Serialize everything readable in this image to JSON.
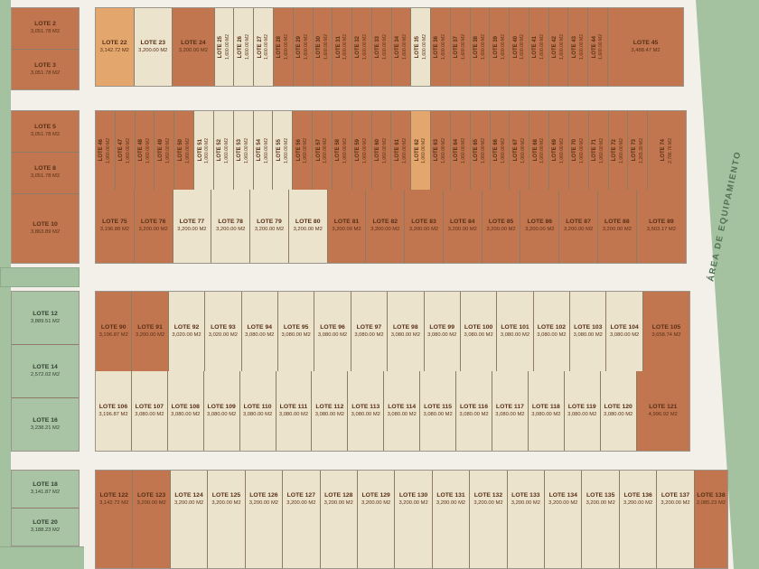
{
  "title": "Plano de lotificación",
  "colors": {
    "orange": "#c1764f",
    "cream": "#ece3cc",
    "tan": "#e3a76d",
    "green": "#a4c1a0",
    "road": "#f2f0e9",
    "lot_text": "#582f16",
    "green_label_text": "#4f7254"
  },
  "right_area": {
    "label": "ÁREA DE EQUIPAMIENTO"
  },
  "left_column": {
    "groups": [
      {
        "lots": [
          {
            "label": "LOTE 2",
            "area": "3,051.78 M2",
            "color": "orange"
          },
          {
            "label": "LOTE 3",
            "area": "3,051.78 M2",
            "color": "orange"
          }
        ]
      },
      {
        "lots": [
          {
            "label": "LOTE 5",
            "area": "3,051.78 M2",
            "color": "orange"
          },
          {
            "label": "LOTE 8",
            "area": "3,051.78 M2",
            "color": "orange"
          },
          {
            "label": "LOTE 10",
            "area": "3,863.89 M2",
            "color": "orange",
            "w": 1.7
          }
        ]
      },
      {
        "lots": [
          {
            "label": "LOTE 12",
            "area": "3,889.51 M2",
            "color": "green"
          },
          {
            "label": "LOTE 14",
            "area": "2,572.02 M2",
            "color": "green"
          },
          {
            "label": "LOTE 16",
            "area": "3,238.21 M2",
            "color": "green"
          }
        ]
      },
      {
        "lots": [
          {
            "label": "LOTE 18",
            "area": "3,141.87 M2",
            "color": "green"
          },
          {
            "label": "LOTE 20",
            "area": "3,188.23 M2",
            "color": "green"
          }
        ]
      }
    ]
  },
  "bands": [
    {
      "rows": [
        {
          "lots": [
            {
              "label": "LOTE 22",
              "area": "3,142.72 M2",
              "color": "tan",
              "w": 2
            },
            {
              "label": "LOTE 23",
              "area": "3,200.00 M2",
              "color": "cream",
              "w": 2
            },
            {
              "label": "LOTE 24",
              "area": "3,200.00 M2",
              "color": "orange",
              "w": 2.2
            },
            {
              "label": "LOTE 25",
              "area": "1,600.00 M2",
              "color": "cream",
              "v": true
            },
            {
              "label": "LOTE 26",
              "area": "1,600.00 M2",
              "color": "cream",
              "v": true
            },
            {
              "label": "LOTE 27",
              "area": "1,600.00 M2",
              "color": "cream",
              "v": true
            },
            {
              "label": "LOTE 28",
              "area": "1,600.00 M2",
              "color": "orange",
              "v": true
            },
            {
              "label": "LOTE 29",
              "area": "1,600.00 M2",
              "color": "orange",
              "v": true
            },
            {
              "label": "LOTE 30",
              "area": "1,600.00 M2",
              "color": "orange",
              "v": true
            },
            {
              "label": "LOTE 31",
              "area": "1,600.00 M2",
              "color": "orange",
              "v": true
            },
            {
              "label": "LOTE 32",
              "area": "1,600.00 M2",
              "color": "orange",
              "v": true
            },
            {
              "label": "LOTE 33",
              "area": "1,600.00 M2",
              "color": "orange",
              "v": true
            },
            {
              "label": "LOTE 34",
              "area": "1,600.00 M2",
              "color": "orange",
              "v": true
            },
            {
              "label": "LOTE 35",
              "area": "1,600.00 M2",
              "color": "cream",
              "v": true
            },
            {
              "label": "LOTE 36",
              "area": "1,600.00 M2",
              "color": "orange",
              "v": true
            },
            {
              "label": "LOTE 37",
              "area": "1,600.00 M2",
              "color": "orange",
              "v": true
            },
            {
              "label": "LOTE 38",
              "area": "1,600.00 M2",
              "color": "orange",
              "v": true
            },
            {
              "label": "LOTE 39",
              "area": "1,600.00 M2",
              "color": "orange",
              "v": true
            },
            {
              "label": "LOTE 40",
              "area": "1,600.00 M2",
              "color": "orange",
              "v": true
            },
            {
              "label": "LOTE 41",
              "area": "1,600.00 M2",
              "color": "orange",
              "v": true
            },
            {
              "label": "LOTE 42",
              "area": "1,600.00 M2",
              "color": "orange",
              "v": true
            },
            {
              "label": "LOTE 43",
              "area": "1,600.00 M2",
              "color": "orange",
              "v": true
            },
            {
              "label": "LOTE 44",
              "area": "1,600.00 M2",
              "color": "orange",
              "v": true
            },
            {
              "label": "LOTE 45",
              "area": "3,488.47 M2",
              "color": "orange",
              "w": 4
            }
          ]
        }
      ]
    },
    {
      "rows": [
        {
          "lots": [
            {
              "label": "LOTE 46",
              "area": "1,060.00 M2",
              "color": "orange",
              "v": true
            },
            {
              "label": "LOTE 47",
              "area": "1,060.00 M2",
              "color": "orange",
              "v": true
            },
            {
              "label": "LOTE 48",
              "area": "1,060.00 M2",
              "color": "orange",
              "v": true
            },
            {
              "label": "LOTE 49",
              "area": "1,060.00 M2",
              "color": "orange",
              "v": true
            },
            {
              "label": "LOTE 50",
              "area": "1,060.00 M2",
              "color": "orange",
              "v": true
            },
            {
              "label": "LOTE 51",
              "area": "1,060.00 M2",
              "color": "cream",
              "v": true
            },
            {
              "label": "LOTE 52",
              "area": "1,060.00 M2",
              "color": "cream",
              "v": true
            },
            {
              "label": "LOTE 53",
              "area": "1,060.00 M2",
              "color": "cream",
              "v": true
            },
            {
              "label": "LOTE 54",
              "area": "1,060.00 M2",
              "color": "cream",
              "v": true
            },
            {
              "label": "LOTE 55",
              "area": "1,060.00 M2",
              "color": "cream",
              "v": true
            },
            {
              "label": "LOTE 56",
              "area": "1,060.00 M2",
              "color": "orange",
              "v": true
            },
            {
              "label": "LOTE 57",
              "area": "1,060.00 M2",
              "color": "orange",
              "v": true
            },
            {
              "label": "LOTE 58",
              "area": "1,060.00 M2",
              "color": "orange",
              "v": true
            },
            {
              "label": "LOTE 59",
              "area": "1,060.00 M2",
              "color": "orange",
              "v": true
            },
            {
              "label": "LOTE 60",
              "area": "1,060.00 M2",
              "color": "orange",
              "v": true
            },
            {
              "label": "LOTE 61",
              "area": "1,060.00 M2",
              "color": "orange",
              "v": true
            },
            {
              "label": "LOTE 62",
              "area": "1,060.00 M2",
              "color": "tan",
              "v": true
            },
            {
              "label": "LOTE 63",
              "area": "1,060.00 M2",
              "color": "orange",
              "v": true
            },
            {
              "label": "LOTE 64",
              "area": "1,060.00 M2",
              "color": "orange",
              "v": true
            },
            {
              "label": "LOTE 65",
              "area": "1,060.00 M2",
              "color": "orange",
              "v": true
            },
            {
              "label": "LOTE 66",
              "area": "1,060.00 M2",
              "color": "orange",
              "v": true
            },
            {
              "label": "LOTE 67",
              "area": "1,060.00 M2",
              "color": "orange",
              "v": true
            },
            {
              "label": "LOTE 68",
              "area": "1,060.00 M2",
              "color": "orange",
              "v": true
            },
            {
              "label": "LOTE 69",
              "area": "1,060.00 M2",
              "color": "orange",
              "v": true
            },
            {
              "label": "LOTE 70",
              "area": "1,060.00 M2",
              "color": "orange",
              "v": true
            },
            {
              "label": "LOTE 71",
              "area": "1,060.00 M2",
              "color": "orange",
              "v": true
            },
            {
              "label": "LOTE 72",
              "area": "1,060.00 M2",
              "color": "orange",
              "v": true
            },
            {
              "label": "LOTE 73",
              "area": "1,265.30 M2",
              "color": "orange",
              "v": true
            },
            {
              "label": "LOTE 74",
              "area": "2,786.76 M2",
              "color": "orange",
              "v": true,
              "w": 2
            }
          ]
        },
        {
          "lots": [
            {
              "label": "LOTE 75",
              "area": "3,196.88 M2",
              "color": "orange"
            },
            {
              "label": "LOTE 76",
              "area": "3,200.00 M2",
              "color": "orange"
            },
            {
              "label": "LOTE 77",
              "area": "3,200.00 M2",
              "color": "cream"
            },
            {
              "label": "LOTE 78",
              "area": "3,200.00 M2",
              "color": "cream"
            },
            {
              "label": "LOTE 79",
              "area": "3,200.00 M2",
              "color": "cream"
            },
            {
              "label": "LOTE 80",
              "area": "3,200.00 M2",
              "color": "cream"
            },
            {
              "label": "LOTE 81",
              "area": "3,200.00 M2",
              "color": "orange"
            },
            {
              "label": "LOTE 82",
              "area": "3,200.00 M2",
              "color": "orange"
            },
            {
              "label": "LOTE 83",
              "area": "3,200.00 M2",
              "color": "orange"
            },
            {
              "label": "LOTE 84",
              "area": "3,200.00 M2",
              "color": "orange"
            },
            {
              "label": "LOTE 85",
              "area": "3,200.00 M2",
              "color": "orange"
            },
            {
              "label": "LOTE 86",
              "area": "3,200.00 M2",
              "color": "orange"
            },
            {
              "label": "LOTE 87",
              "area": "3,200.00 M2",
              "color": "orange"
            },
            {
              "label": "LOTE 88",
              "area": "3,200.00 M2",
              "color": "orange"
            },
            {
              "label": "LOTE 89",
              "area": "3,503.17 M2",
              "color": "orange",
              "w": 1.3
            }
          ]
        }
      ]
    },
    {
      "rows": [
        {
          "lots": [
            {
              "label": "LOTE 90",
              "area": "3,196.87 M2",
              "color": "orange"
            },
            {
              "label": "LOTE 91",
              "area": "3,200.00 M2",
              "color": "orange"
            },
            {
              "label": "LOTE 92",
              "area": "3,020.00 M2",
              "color": "cream"
            },
            {
              "label": "LOTE 93",
              "area": "3,020.00 M2",
              "color": "cream"
            },
            {
              "label": "LOTE 94",
              "area": "3,080.00 M2",
              "color": "cream"
            },
            {
              "label": "LOTE 95",
              "area": "3,080.00 M2",
              "color": "cream"
            },
            {
              "label": "LOTE 96",
              "area": "3,080.00 M2",
              "color": "cream"
            },
            {
              "label": "LOTE 97",
              "area": "3,080.00 M2",
              "color": "cream"
            },
            {
              "label": "LOTE 98",
              "area": "3,080.00 M2",
              "color": "cream"
            },
            {
              "label": "LOTE 99",
              "area": "3,080.00 M2",
              "color": "cream"
            },
            {
              "label": "LOTE 100",
              "area": "3,080.00 M2",
              "color": "cream"
            },
            {
              "label": "LOTE 101",
              "area": "3,080.00 M2",
              "color": "cream"
            },
            {
              "label": "LOTE 102",
              "area": "3,080.00 M2",
              "color": "cream"
            },
            {
              "label": "LOTE 103",
              "area": "3,080.00 M2",
              "color": "cream"
            },
            {
              "label": "LOTE 104",
              "area": "3,080.00 M2",
              "color": "cream"
            },
            {
              "label": "LOTE 105",
              "area": "3,658.74 M2",
              "color": "orange",
              "w": 1.3
            }
          ]
        },
        {
          "lots": [
            {
              "label": "LOTE 106",
              "area": "3,196.87 M2",
              "color": "cream"
            },
            {
              "label": "LOTE 107",
              "area": "3,080.00 M2",
              "color": "cream"
            },
            {
              "label": "LOTE 108",
              "area": "3,080.00 M2",
              "color": "cream"
            },
            {
              "label": "LOTE 109",
              "area": "3,080.00 M2",
              "color": "cream"
            },
            {
              "label": "LOTE 110",
              "area": "3,080.00 M2",
              "color": "cream"
            },
            {
              "label": "LOTE 111",
              "area": "3,080.00 M2",
              "color": "cream"
            },
            {
              "label": "LOTE 112",
              "area": "3,080.00 M2",
              "color": "cream"
            },
            {
              "label": "LOTE 113",
              "area": "3,080.00 M2",
              "color": "cream"
            },
            {
              "label": "LOTE 114",
              "area": "3,080.00 M2",
              "color": "cream"
            },
            {
              "label": "LOTE 115",
              "area": "3,080.00 M2",
              "color": "cream"
            },
            {
              "label": "LOTE 116",
              "area": "3,080.00 M2",
              "color": "cream"
            },
            {
              "label": "LOTE 117",
              "area": "3,080.00 M2",
              "color": "cream"
            },
            {
              "label": "LOTE 118",
              "area": "3,080.00 M2",
              "color": "cream"
            },
            {
              "label": "LOTE 119",
              "area": "3,080.00 M2",
              "color": "cream"
            },
            {
              "label": "LOTE 120",
              "area": "3,080.00 M2",
              "color": "cream"
            },
            {
              "label": "LOTE 121",
              "area": "4,996.92 M2",
              "color": "orange",
              "w": 1.5
            }
          ]
        }
      ]
    },
    {
      "rows": [
        {
          "lots": [
            {
              "label": "LOTE 122",
              "area": "3,142.72 M2",
              "color": "orange"
            },
            {
              "label": "LOTE 123",
              "area": "3,200.00 M2",
              "color": "orange"
            },
            {
              "label": "LOTE 124",
              "area": "3,200.00 M2",
              "color": "cream"
            },
            {
              "label": "LOTE 125",
              "area": "3,200.00 M2",
              "color": "cream"
            },
            {
              "label": "LOTE 126",
              "area": "3,200.00 M2",
              "color": "cream"
            },
            {
              "label": "LOTE 127",
              "area": "3,200.00 M2",
              "color": "cream"
            },
            {
              "label": "LOTE 128",
              "area": "3,200.00 M2",
              "color": "cream"
            },
            {
              "label": "LOTE 129",
              "area": "3,200.00 M2",
              "color": "cream"
            },
            {
              "label": "LOTE 130",
              "area": "3,200.00 M2",
              "color": "cream"
            },
            {
              "label": "LOTE 131",
              "area": "3,200.00 M2",
              "color": "cream"
            },
            {
              "label": "LOTE 132",
              "area": "3,200.00 M2",
              "color": "cream"
            },
            {
              "label": "LOTE 133",
              "area": "3,200.00 M2",
              "color": "cream"
            },
            {
              "label": "LOTE 134",
              "area": "3,200.00 M2",
              "color": "cream"
            },
            {
              "label": "LOTE 135",
              "area": "3,200.00 M2",
              "color": "cream"
            },
            {
              "label": "LOTE 136",
              "area": "3,200.00 M2",
              "color": "cream"
            },
            {
              "label": "LOTE 137",
              "area": "3,200.00 M2",
              "color": "cream"
            },
            {
              "label": "LOTE 138",
              "area": "2,085.23 M2",
              "color": "orange",
              "w": 0.9
            }
          ]
        }
      ]
    }
  ]
}
